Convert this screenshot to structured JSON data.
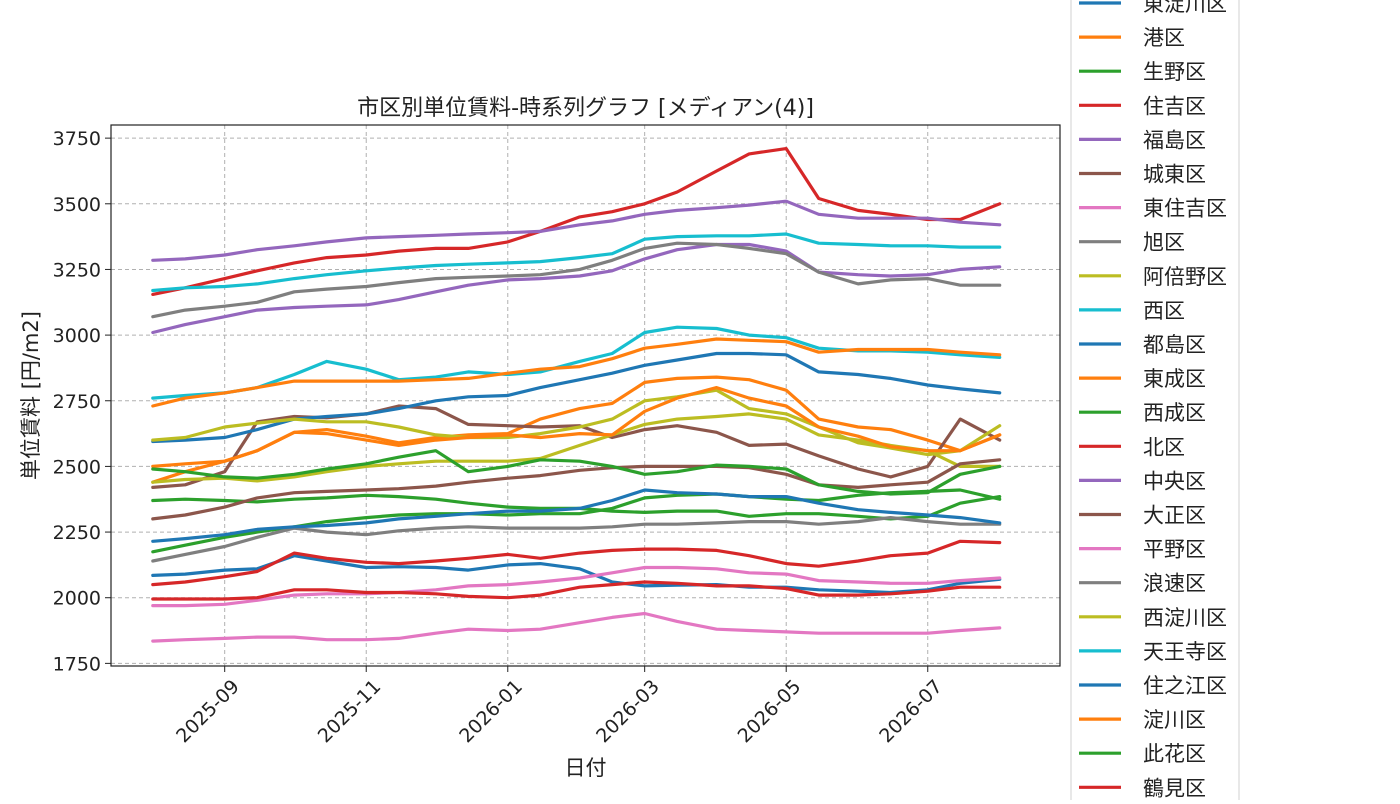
{
  "chart_data": {
    "type": "line",
    "title": "市区別単位賃料-時系列グラフ [メディアン(4)]",
    "xlabel": "日付",
    "ylabel": "単位賃料 [円/m2]",
    "x_range": [
      "2025-07-14",
      "2026-08-27"
    ],
    "ylim": [
      1740,
      3800
    ],
    "y_ticks": [
      1750,
      2000,
      2250,
      2500,
      2750,
      3000,
      3250,
      3500,
      3750
    ],
    "y_tick_labels": [
      "1750",
      "2000",
      "2250",
      "2500",
      "2750",
      "3000",
      "3250",
      "3500",
      "3750"
    ],
    "x_ticks": [
      "2025-09-01",
      "2025-11-01",
      "2026-01-01",
      "2026-03-01",
      "2026-05-01",
      "2026-07-01"
    ],
    "x_tick_labels": [
      "2025-09",
      "2025-11",
      "2026-01",
      "2026-03",
      "2026-05",
      "2026-07"
    ],
    "grid": true,
    "legend_position": "right",
    "x_dates": [
      "2025-08-01",
      "2025-08-15",
      "2025-09-01",
      "2025-09-15",
      "2025-10-01",
      "2025-10-15",
      "2025-11-01",
      "2025-11-15",
      "2025-12-01",
      "2025-12-15",
      "2026-01-01",
      "2026-01-15",
      "2026-02-01",
      "2026-02-15",
      "2026-03-01",
      "2026-03-15",
      "2026-04-01",
      "2026-04-15",
      "2026-05-01",
      "2026-05-15",
      "2026-06-01",
      "2026-06-15",
      "2026-07-01",
      "2026-07-15",
      "2026-08-01"
    ],
    "series": [
      {
        "name": "東淀川区",
        "color": "#1f77b4",
        "values": [
          2085,
          2090,
          2105,
          2110,
          2160,
          2140,
          2115,
          2118,
          2115,
          2105,
          2125,
          2130,
          2110,
          2060,
          2045,
          2048,
          2050,
          2040,
          2040,
          2030,
          2025,
          2020,
          2030,
          2055,
          2070
        ]
      },
      {
        "name": "港区",
        "color": "#ff7f0e",
        "values": [
          2440,
          2480,
          2520,
          2560,
          2630,
          2640,
          2615,
          2590,
          2610,
          2620,
          2625,
          2680,
          2720,
          2740,
          2820,
          2835,
          2840,
          2830,
          2790,
          2680,
          2650,
          2640,
          2600,
          2560,
          2620
        ]
      },
      {
        "name": "生野区",
        "color": "#2ca02c",
        "values": [
          2370,
          2375,
          2370,
          2365,
          2375,
          2380,
          2390,
          2385,
          2375,
          2360,
          2345,
          2340,
          2340,
          2330,
          2325,
          2330,
          2330,
          2310,
          2320,
          2320,
          2310,
          2300,
          2310,
          2360,
          2385
        ]
      },
      {
        "name": "住吉区",
        "color": "#d62728",
        "values": [
          2050,
          2060,
          2080,
          2100,
          2170,
          2150,
          2135,
          2130,
          2140,
          2150,
          2165,
          2150,
          2170,
          2180,
          2185,
          2185,
          2180,
          2160,
          2130,
          2120,
          2140,
          2160,
          2170,
          2215,
          2210
        ]
      },
      {
        "name": "福島区",
        "color": "#9467bd",
        "values": [
          3010,
          3040,
          3070,
          3095,
          3105,
          3110,
          3115,
          3135,
          3165,
          3190,
          3210,
          3215,
          3225,
          3245,
          3290,
          3325,
          3345,
          3345,
          3320,
          3240,
          3230,
          3225,
          3230,
          3250,
          3260
        ]
      },
      {
        "name": "城東区",
        "color": "#8c564b",
        "values": [
          2420,
          2430,
          2480,
          2670,
          2690,
          2685,
          2700,
          2730,
          2720,
          2660,
          2655,
          2650,
          2655,
          2610,
          2640,
          2655,
          2630,
          2580,
          2585,
          2540,
          2490,
          2460,
          2500,
          2680,
          2600
        ]
      },
      {
        "name": "東住吉区",
        "color": "#e377c2",
        "values": [
          1970,
          1970,
          1975,
          1990,
          2010,
          2015,
          2015,
          2020,
          2030,
          2045,
          2050,
          2060,
          2075,
          2095,
          2115,
          2115,
          2110,
          2095,
          2090,
          2065,
          2060,
          2055,
          2055,
          2065,
          2075
        ]
      },
      {
        "name": "旭区",
        "color": "#7f7f7f",
        "values": [
          3070,
          3095,
          3110,
          3125,
          3165,
          3175,
          3185,
          3200,
          3215,
          3220,
          3225,
          3230,
          3250,
          3285,
          3330,
          3350,
          3345,
          3330,
          3310,
          3240,
          3195,
          3210,
          3215,
          3190,
          3190
        ]
      },
      {
        "name": "阿倍野区",
        "color": "#bcbd22",
        "values": [
          2440,
          2450,
          2455,
          2445,
          2460,
          2480,
          2500,
          2510,
          2520,
          2520,
          2520,
          2530,
          2580,
          2620,
          2660,
          2680,
          2690,
          2700,
          2680,
          2620,
          2600,
          2580,
          2560,
          2500,
          2500
        ]
      },
      {
        "name": "西区",
        "color": "#17becf",
        "values": [
          2760,
          2770,
          2780,
          2800,
          2850,
          2900,
          2870,
          2830,
          2840,
          2860,
          2850,
          2860,
          2900,
          2930,
          3010,
          3030,
          3025,
          3000,
          2990,
          2950,
          2940,
          2940,
          2935,
          2925,
          2915
        ]
      },
      {
        "name": "都島区",
        "color": "#1f77b4",
        "values": [
          2595,
          2600,
          2610,
          2640,
          2680,
          2690,
          2700,
          2720,
          2750,
          2765,
          2770,
          2800,
          2830,
          2855,
          2885,
          2905,
          2930,
          2930,
          2925,
          2860,
          2850,
          2835,
          2810,
          2795,
          2780
        ]
      },
      {
        "name": "東成区",
        "color": "#ff7f0e",
        "values": [
          2730,
          2760,
          2780,
          2800,
          2825,
          2825,
          2825,
          2825,
          2830,
          2835,
          2855,
          2870,
          2880,
          2910,
          2950,
          2965,
          2985,
          2980,
          2975,
          2935,
          2945,
          2945,
          2945,
          2935,
          2925
        ]
      },
      {
        "name": "西成区",
        "color": "#2ca02c",
        "values": [
          2175,
          2200,
          2230,
          2250,
          2270,
          2290,
          2305,
          2315,
          2320,
          2320,
          2315,
          2320,
          2320,
          2340,
          2380,
          2390,
          2395,
          2385,
          2375,
          2370,
          2390,
          2400,
          2405,
          2410,
          2375
        ]
      },
      {
        "name": "北区",
        "color": "#d62728",
        "values": [
          3155,
          3180,
          3215,
          3245,
          3275,
          3295,
          3305,
          3320,
          3330,
          3330,
          3355,
          3395,
          3450,
          3470,
          3500,
          3545,
          3625,
          3690,
          3710,
          3520,
          3475,
          3460,
          3440,
          3440,
          3500
        ]
      },
      {
        "name": "中央区",
        "color": "#9467bd",
        "values": [
          3285,
          3290,
          3305,
          3325,
          3340,
          3355,
          3370,
          3375,
          3380,
          3385,
          3390,
          3395,
          3420,
          3435,
          3460,
          3475,
          3485,
          3495,
          3510,
          3460,
          3445,
          3445,
          3445,
          3430,
          3420
        ]
      },
      {
        "name": "大正区",
        "color": "#8c564b",
        "values": [
          2300,
          2315,
          2345,
          2380,
          2400,
          2405,
          2410,
          2415,
          2425,
          2440,
          2455,
          2465,
          2485,
          2495,
          2500,
          2500,
          2500,
          2495,
          2470,
          2430,
          2420,
          2430,
          2440,
          2510,
          2525
        ]
      },
      {
        "name": "平野区",
        "color": "#e377c2",
        "values": [
          1835,
          1840,
          1845,
          1850,
          1850,
          1840,
          1840,
          1845,
          1865,
          1880,
          1875,
          1880,
          1905,
          1925,
          1940,
          1910,
          1880,
          1875,
          1870,
          1865,
          1865,
          1865,
          1865,
          1875,
          1885
        ]
      },
      {
        "name": "浪速区",
        "color": "#7f7f7f",
        "values": [
          2140,
          2165,
          2195,
          2230,
          2265,
          2250,
          2240,
          2255,
          2265,
          2270,
          2265,
          2265,
          2265,
          2270,
          2280,
          2280,
          2285,
          2290,
          2290,
          2280,
          2290,
          2305,
          2290,
          2280,
          2280
        ]
      },
      {
        "name": "西淀川区",
        "color": "#bcbd22",
        "values": [
          2600,
          2610,
          2650,
          2665,
          2680,
          2670,
          2670,
          2650,
          2620,
          2610,
          2610,
          2625,
          2650,
          2680,
          2750,
          2765,
          2790,
          2720,
          2700,
          2650,
          2590,
          2570,
          2545,
          2560,
          2655
        ]
      },
      {
        "name": "天王寺区",
        "color": "#17becf",
        "values": [
          3170,
          3180,
          3185,
          3195,
          3215,
          3230,
          3245,
          3255,
          3265,
          3270,
          3275,
          3280,
          3295,
          3310,
          3365,
          3375,
          3378,
          3378,
          3385,
          3350,
          3345,
          3340,
          3340,
          3335,
          3335
        ]
      },
      {
        "name": "住之江区",
        "color": "#1f77b4",
        "values": [
          2215,
          2225,
          2240,
          2260,
          2270,
          2275,
          2285,
          2300,
          2310,
          2320,
          2330,
          2330,
          2340,
          2370,
          2410,
          2400,
          2395,
          2385,
          2385,
          2360,
          2335,
          2325,
          2315,
          2305,
          2285
        ]
      },
      {
        "name": "淀川区",
        "color": "#ff7f0e",
        "values": [
          2500,
          2510,
          2520,
          2560,
          2630,
          2625,
          2600,
          2580,
          2600,
          2610,
          2620,
          2610,
          2625,
          2620,
          2710,
          2760,
          2800,
          2760,
          2730,
          2650,
          2615,
          2575,
          2560,
          2560,
          2620
        ]
      },
      {
        "name": "此花区",
        "color": "#2ca02c",
        "values": [
          2490,
          2480,
          2460,
          2455,
          2470,
          2490,
          2510,
          2535,
          2560,
          2480,
          2500,
          2525,
          2520,
          2500,
          2470,
          2480,
          2505,
          2500,
          2490,
          2430,
          2405,
          2395,
          2400,
          2470,
          2500
        ]
      },
      {
        "name": "鶴見区",
        "color": "#d62728",
        "values": [
          1995,
          1995,
          1995,
          2000,
          2030,
          2030,
          2020,
          2020,
          2015,
          2005,
          2000,
          2010,
          2040,
          2050,
          2060,
          2055,
          2045,
          2045,
          2035,
          2010,
          2010,
          2015,
          2025,
          2040,
          2040
        ]
      }
    ]
  }
}
